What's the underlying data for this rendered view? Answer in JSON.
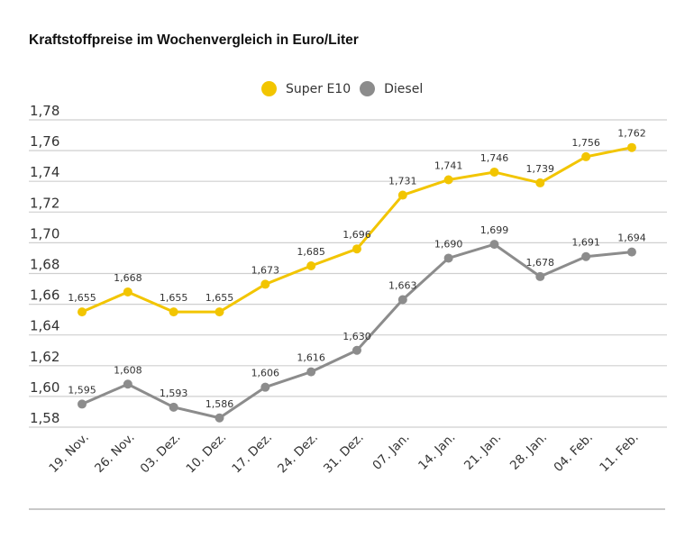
{
  "chart_data": {
    "type": "line",
    "title": "Kraftstoffpreise im Wochenvergleich in Euro/Liter",
    "categories": [
      "19. Nov.",
      "26. Nov.",
      "03. Dez.",
      "10. Dez.",
      "17. Dez.",
      "24. Dez.",
      "31. Dez.",
      "07. Jan.",
      "14. Jan.",
      "21. Jan.",
      "28. Jan.",
      "04. Feb.",
      "11. Feb."
    ],
    "series": [
      {
        "name": "Super E10",
        "color": "#f2c500",
        "values": [
          1.655,
          1.668,
          1.655,
          1.655,
          1.673,
          1.685,
          1.696,
          1.731,
          1.741,
          1.746,
          1.739,
          1.756,
          1.762
        ],
        "labels": [
          "1,655",
          "1,668",
          "1,655",
          "1,655",
          "1,673",
          "1,685",
          "1,696",
          "1,731",
          "1,741",
          "1,746",
          "1,739",
          "1,756",
          "1,762"
        ]
      },
      {
        "name": "Diesel",
        "color": "#8c8c8c",
        "values": [
          1.595,
          1.608,
          1.593,
          1.586,
          1.606,
          1.616,
          1.63,
          1.663,
          1.69,
          1.699,
          1.678,
          1.691,
          1.694
        ],
        "labels": [
          "1,595",
          "1,608",
          "1,593",
          "1,586",
          "1,606",
          "1,616",
          "1,630",
          "1,663",
          "1,690",
          "1,699",
          "1,678",
          "1,691",
          "1,694"
        ]
      }
    ],
    "ylim": [
      1.58,
      1.78
    ],
    "yticks": [
      "1,58",
      "1,60",
      "1,62",
      "1,64",
      "1,66",
      "1,68",
      "1,70",
      "1,72",
      "1,74",
      "1,76",
      "1,78"
    ],
    "grid": true,
    "legend": "top-center"
  }
}
